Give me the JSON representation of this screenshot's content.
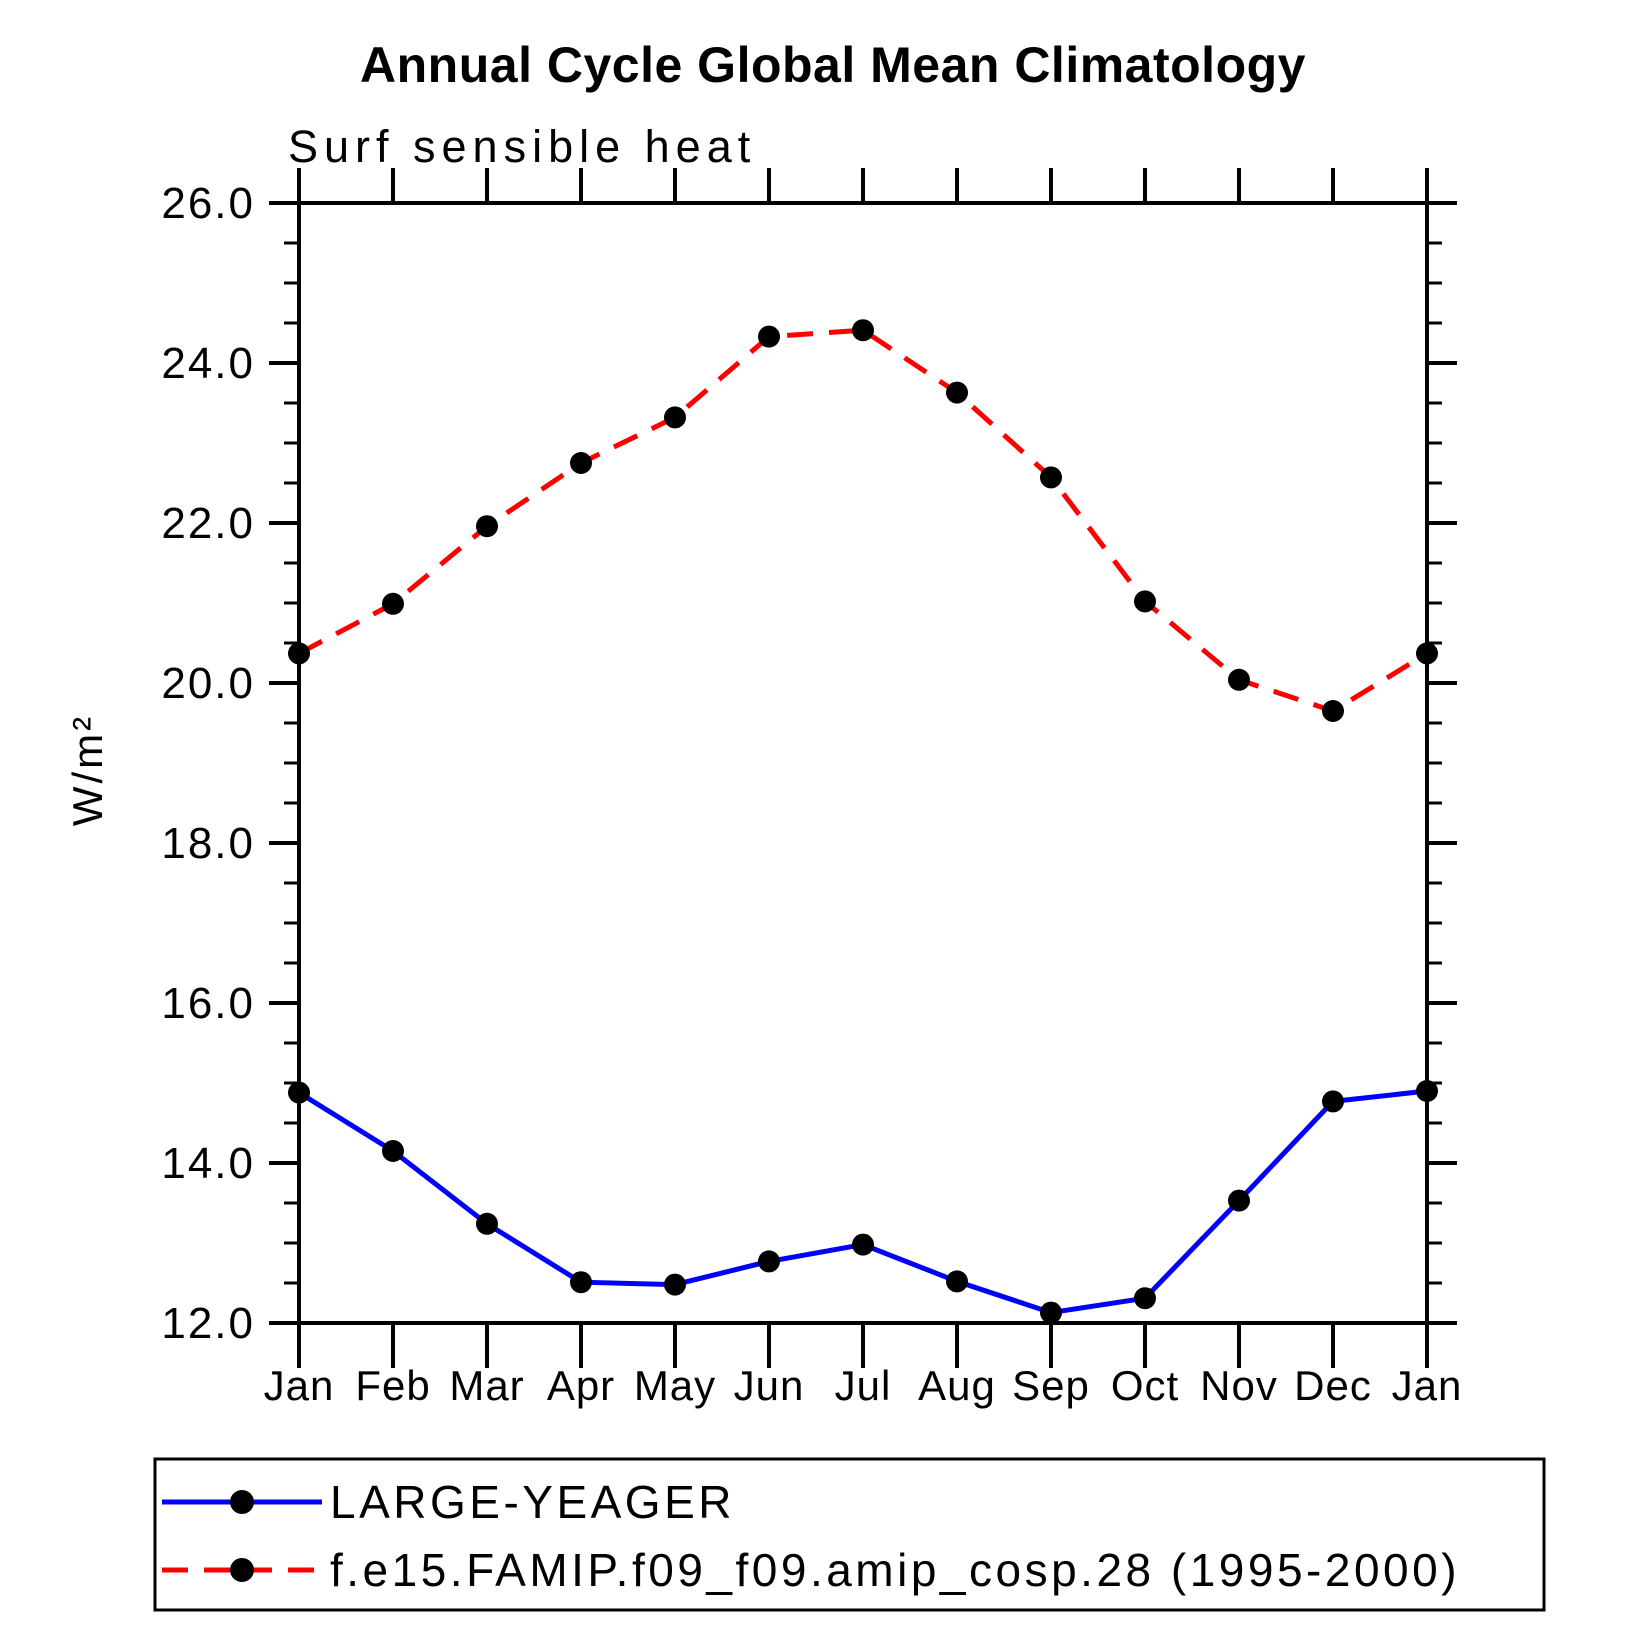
{
  "title": "Annual Cycle Global Mean Climatology",
  "subtitle": "Surf sensible heat",
  "y_axis_label": "W/m²",
  "x_axis_labels": [
    "Jan",
    "Feb",
    "Mar",
    "Apr",
    "May",
    "Jun",
    "Jul",
    "Aug",
    "Sep",
    "Oct",
    "Nov",
    "Dec",
    "Jan"
  ],
  "colors": {
    "series_blue": "#0000ff",
    "series_red": "#ff0000",
    "marker": "#000000",
    "axis": "#000000"
  },
  "legend": [
    {
      "label": "LARGE-YEAGER",
      "color": "#0000ff",
      "style": "solid"
    },
    {
      "label": "f.e15.FAMIP.f09_f09.amip_cosp.28 (1995-2000)",
      "color": "#ff0000",
      "style": "dashed"
    }
  ],
  "chart_data": {
    "type": "line",
    "title": "Annual Cycle Global Mean Climatology",
    "subtitle": "Surf sensible heat",
    "xlabel": "",
    "ylabel": "W/m²",
    "categories": [
      "Jan",
      "Feb",
      "Mar",
      "Apr",
      "May",
      "Jun",
      "Jul",
      "Aug",
      "Sep",
      "Oct",
      "Nov",
      "Dec",
      "Jan"
    ],
    "ylim": [
      12.0,
      26.0
    ],
    "y_major_tick_step": 2.0,
    "y_minor_tick_step": 0.5,
    "y_major_ticks": [
      12.0,
      14.0,
      16.0,
      18.0,
      20.0,
      22.0,
      24.0,
      26.0
    ],
    "grid": false,
    "legend_position": "bottom",
    "series": [
      {
        "name": "LARGE-YEAGER",
        "color": "#0000ff",
        "line_style": "solid",
        "marker": "circle",
        "values": [
          14.88,
          14.15,
          13.24,
          12.51,
          12.48,
          12.77,
          12.98,
          12.52,
          12.13,
          12.31,
          13.53,
          14.77,
          14.9
        ]
      },
      {
        "name": "f.e15.FAMIP.f09_f09.amip_cosp.28 (1995-2000)",
        "color": "#ff0000",
        "line_style": "dashed",
        "marker": "circle",
        "values": [
          20.37,
          20.99,
          21.96,
          22.75,
          23.32,
          24.33,
          24.41,
          23.63,
          22.57,
          21.02,
          20.04,
          19.65,
          20.37
        ]
      }
    ]
  }
}
